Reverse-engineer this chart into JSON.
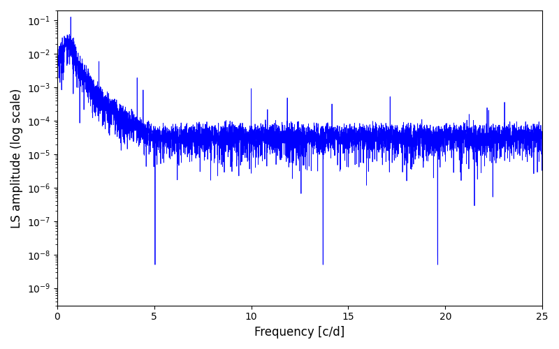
{
  "xlabel": "Frequency [c/d]",
  "ylabel": "LS amplitude (log scale)",
  "line_color": "#0000ff",
  "line_width": 0.6,
  "xlim": [
    0,
    25
  ],
  "ylim": [
    3e-10,
    0.2
  ],
  "freq_max": 25.0,
  "n_points": 5000,
  "seed": 7,
  "figsize": [
    8.0,
    5.0
  ],
  "dpi": 100,
  "background_color": "#ffffff",
  "peak_amplitude": 0.03,
  "peak_freq": 0.7,
  "noise_floor_mid": 5e-05,
  "noise_floor_high": 5e-05
}
